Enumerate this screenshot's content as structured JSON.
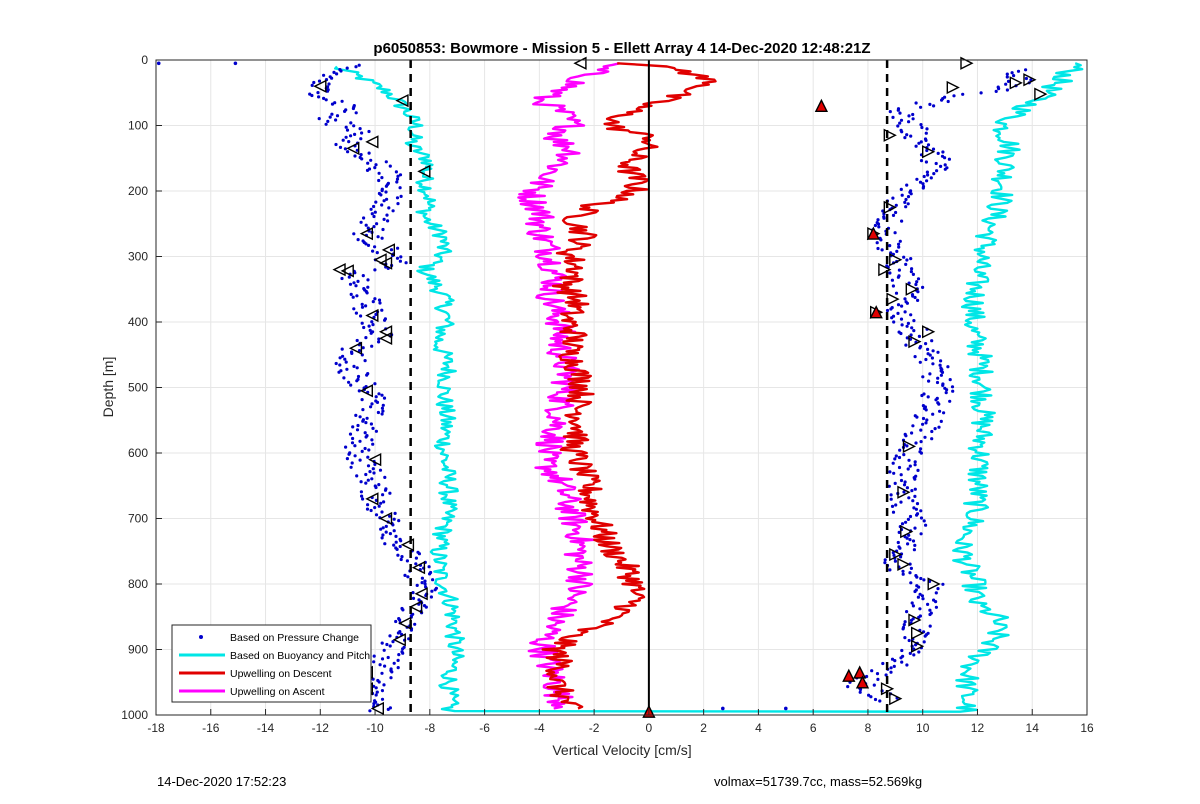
{
  "footer": {
    "timestamp": "14-Dec-2020 17:52:23",
    "info": "volmax=51739.7cc, mass=52.569kg"
  },
  "chart_data": {
    "type": "scatter",
    "title": "p6050853: Bowmore - Mission 5 - Ellett Array 4 14-Dec-2020 12:48:21Z",
    "xlabel": "Vertical Velocity [cm/s]",
    "ylabel": "Depth [m]",
    "xlim": [
      -18,
      16
    ],
    "ylim": [
      0,
      1000
    ],
    "y_reversed": true,
    "grid": true,
    "xticks": [
      -18,
      -16,
      -14,
      -12,
      -10,
      -8,
      -6,
      -4,
      -2,
      0,
      2,
      4,
      6,
      8,
      10,
      12,
      14,
      16
    ],
    "yticks": [
      0,
      100,
      200,
      300,
      400,
      500,
      600,
      700,
      800,
      900,
      1000
    ],
    "legend_position": "bottom-left",
    "colors": {
      "pressure": "#0000cc",
      "buoyancy": "#00e6e6",
      "descent": "#e00000",
      "ascent": "#ff00ff",
      "reference": "#000000",
      "marker_edge": "#000000"
    },
    "series": [
      {
        "name": "Based on Pressure Change",
        "style": "dots",
        "points_left": [
          [
            -10.8,
            8
          ],
          [
            -11.5,
            20
          ],
          [
            -12.2,
            40
          ],
          [
            -11.6,
            60
          ],
          [
            -10.7,
            75
          ],
          [
            -11.9,
            90
          ],
          [
            -10.3,
            110
          ],
          [
            -11.3,
            130
          ],
          [
            -10.1,
            150
          ],
          [
            -9.6,
            175
          ],
          [
            -9.3,
            200
          ],
          [
            -9.9,
            240
          ],
          [
            -10.3,
            270
          ],
          [
            -9.6,
            290
          ],
          [
            -9.4,
            310
          ],
          [
            -10.9,
            330
          ],
          [
            -10.4,
            360
          ],
          [
            -10.1,
            400
          ],
          [
            -9.7,
            420
          ],
          [
            -10.8,
            440
          ],
          [
            -10.9,
            470
          ],
          [
            -10.1,
            510
          ],
          [
            -10.3,
            550
          ],
          [
            -10.6,
            580
          ],
          [
            -10.5,
            610
          ],
          [
            -10.1,
            640
          ],
          [
            -9.9,
            680
          ],
          [
            -9.4,
            710
          ],
          [
            -9.1,
            740
          ],
          [
            -8.6,
            770
          ],
          [
            -8.2,
            800
          ],
          [
            -8.4,
            830
          ],
          [
            -8.9,
            860
          ],
          [
            -9.3,
            890
          ],
          [
            -9.6,
            920
          ],
          [
            -9.9,
            950
          ],
          [
            -10.0,
            980
          ],
          [
            -9.7,
            995
          ]
        ],
        "points_right": [
          [
            13.6,
            15
          ],
          [
            13.3,
            40
          ],
          [
            10.7,
            60
          ],
          [
            9.2,
            80
          ],
          [
            9.7,
            110
          ],
          [
            10.3,
            140
          ],
          [
            10.6,
            160
          ],
          [
            10.0,
            180
          ],
          [
            9.5,
            200
          ],
          [
            9.0,
            230
          ],
          [
            8.6,
            260
          ],
          [
            8.9,
            290
          ],
          [
            9.2,
            320
          ],
          [
            9.5,
            350
          ],
          [
            9.1,
            380
          ],
          [
            9.6,
            410
          ],
          [
            10.0,
            440
          ],
          [
            10.4,
            470
          ],
          [
            10.6,
            500
          ],
          [
            10.4,
            530
          ],
          [
            10.1,
            560
          ],
          [
            9.6,
            590
          ],
          [
            9.3,
            620
          ],
          [
            9.2,
            650
          ],
          [
            9.4,
            680
          ],
          [
            9.6,
            710
          ],
          [
            9.3,
            740
          ],
          [
            9.1,
            770
          ],
          [
            9.5,
            790
          ],
          [
            10.2,
            800
          ],
          [
            10.3,
            820
          ],
          [
            9.7,
            850
          ],
          [
            9.8,
            880
          ],
          [
            9.4,
            900
          ],
          [
            9.1,
            920
          ],
          [
            8.3,
            940
          ],
          [
            7.5,
            950
          ],
          [
            8.2,
            965
          ],
          [
            8.9,
            980
          ]
        ],
        "outliers": [
          [
            -17.9,
            5
          ],
          [
            -15.1,
            5
          ],
          [
            6.3,
            70
          ],
          [
            2.7,
            990
          ],
          [
            5.0,
            990
          ]
        ]
      },
      {
        "name": "Based on Buoyancy and Pitch",
        "style": "line",
        "points": [
          [
            -11.5,
            10
          ],
          [
            -10.6,
            25
          ],
          [
            -9.5,
            50
          ],
          [
            -8.9,
            75
          ],
          [
            -8.5,
            100
          ],
          [
            -8.7,
            130
          ],
          [
            -8.0,
            155
          ],
          [
            -8.2,
            180
          ],
          [
            -8.0,
            210
          ],
          [
            -8.2,
            240
          ],
          [
            -7.5,
            270
          ],
          [
            -7.6,
            300
          ],
          [
            -8.2,
            320
          ],
          [
            -7.5,
            360
          ],
          [
            -7.4,
            400
          ],
          [
            -7.7,
            430
          ],
          [
            -7.3,
            470
          ],
          [
            -7.5,
            510
          ],
          [
            -7.4,
            550
          ],
          [
            -7.5,
            600
          ],
          [
            -7.3,
            650
          ],
          [
            -7.4,
            700
          ],
          [
            -7.7,
            750
          ],
          [
            -7.6,
            790
          ],
          [
            -7.2,
            830
          ],
          [
            -7.1,
            870
          ],
          [
            -7.1,
            910
          ],
          [
            -7.3,
            950
          ],
          [
            -7.3,
            995
          ],
          [
            11.6,
            995
          ],
          [
            11.6,
            975
          ],
          [
            11.6,
            955
          ],
          [
            11.7,
            930
          ],
          [
            12.2,
            905
          ],
          [
            12.7,
            880
          ],
          [
            12.7,
            850
          ],
          [
            11.9,
            830
          ],
          [
            11.9,
            800
          ],
          [
            11.6,
            770
          ],
          [
            11.4,
            740
          ],
          [
            11.9,
            700
          ],
          [
            12.0,
            650
          ],
          [
            12.1,
            600
          ],
          [
            12.2,
            550
          ],
          [
            12.2,
            500
          ],
          [
            12.1,
            450
          ],
          [
            11.8,
            410
          ],
          [
            11.9,
            370
          ],
          [
            12.0,
            320
          ],
          [
            12.3,
            280
          ],
          [
            12.5,
            250
          ],
          [
            12.9,
            210
          ],
          [
            13.0,
            170
          ],
          [
            13.2,
            130
          ],
          [
            12.9,
            100
          ],
          [
            13.5,
            80
          ],
          [
            14.2,
            60
          ],
          [
            14.8,
            40
          ],
          [
            15.3,
            20
          ],
          [
            15.7,
            5
          ]
        ]
      },
      {
        "name": "Upwelling on Descent",
        "style": "line",
        "points": [
          [
            -0.8,
            5
          ],
          [
            1.2,
            15
          ],
          [
            2.4,
            35
          ],
          [
            0.5,
            60
          ],
          [
            -0.8,
            80
          ],
          [
            -1.5,
            100
          ],
          [
            0.2,
            120
          ],
          [
            -0.5,
            145
          ],
          [
            -0.8,
            165
          ],
          [
            -0.4,
            185
          ],
          [
            -0.6,
            205
          ],
          [
            -2.2,
            225
          ],
          [
            -2.7,
            245
          ],
          [
            -2.3,
            270
          ],
          [
            -2.9,
            295
          ],
          [
            -2.6,
            320
          ],
          [
            -3.0,
            345
          ],
          [
            -2.6,
            370
          ],
          [
            -3.0,
            395
          ],
          [
            -2.7,
            420
          ],
          [
            -2.9,
            445
          ],
          [
            -2.6,
            470
          ],
          [
            -2.4,
            500
          ],
          [
            -2.6,
            530
          ],
          [
            -2.5,
            560
          ],
          [
            -2.8,
            590
          ],
          [
            -2.5,
            620
          ],
          [
            -2.2,
            650
          ],
          [
            -2.1,
            680
          ],
          [
            -1.8,
            710
          ],
          [
            -1.5,
            740
          ],
          [
            -0.9,
            770
          ],
          [
            -0.5,
            800
          ],
          [
            -0.6,
            830
          ],
          [
            -1.4,
            855
          ],
          [
            -2.7,
            875
          ],
          [
            -3.4,
            900
          ],
          [
            -3.2,
            925
          ],
          [
            -3.4,
            950
          ],
          [
            -3.1,
            975
          ],
          [
            -2.9,
            990
          ]
        ]
      },
      {
        "name": "Upwelling on Ascent",
        "style": "line",
        "points": [
          [
            -1.5,
            5
          ],
          [
            -2.1,
            20
          ],
          [
            -2.9,
            40
          ],
          [
            -4.0,
            60
          ],
          [
            -3.2,
            80
          ],
          [
            -2.8,
            100
          ],
          [
            -3.4,
            120
          ],
          [
            -2.7,
            140
          ],
          [
            -3.4,
            165
          ],
          [
            -3.9,
            185
          ],
          [
            -4.3,
            210
          ],
          [
            -3.9,
            235
          ],
          [
            -4.0,
            260
          ],
          [
            -3.7,
            285
          ],
          [
            -3.5,
            310
          ],
          [
            -3.4,
            335
          ],
          [
            -3.6,
            360
          ],
          [
            -3.4,
            385
          ],
          [
            -3.2,
            410
          ],
          [
            -3.3,
            435
          ],
          [
            -3.1,
            460
          ],
          [
            -3.0,
            490
          ],
          [
            -3.2,
            520
          ],
          [
            -3.3,
            550
          ],
          [
            -3.5,
            580
          ],
          [
            -3.9,
            610
          ],
          [
            -3.3,
            640
          ],
          [
            -3.0,
            670
          ],
          [
            -2.8,
            700
          ],
          [
            -2.5,
            730
          ],
          [
            -2.6,
            760
          ],
          [
            -2.4,
            790
          ],
          [
            -2.8,
            820
          ],
          [
            -3.3,
            850
          ],
          [
            -3.6,
            870
          ],
          [
            -3.9,
            890
          ],
          [
            -3.8,
            910
          ],
          [
            -3.5,
            940
          ],
          [
            -3.3,
            970
          ],
          [
            -3.0,
            990
          ]
        ]
      }
    ],
    "markers": {
      "left_triangles": [
        [
          -12.0,
          40
        ],
        [
          -9.0,
          62
        ],
        [
          -10.1,
          125
        ],
        [
          -10.8,
          135
        ],
        [
          -8.2,
          170
        ],
        [
          -10.3,
          265
        ],
        [
          -9.5,
          290
        ],
        [
          -9.8,
          305
        ],
        [
          -9.6,
          310
        ],
        [
          -11.3,
          320
        ],
        [
          -11.0,
          322
        ],
        [
          -10.1,
          390
        ],
        [
          -9.6,
          415
        ],
        [
          -9.6,
          425
        ],
        [
          -10.7,
          440
        ],
        [
          -10.3,
          505
        ],
        [
          -10.0,
          610
        ],
        [
          -10.1,
          670
        ],
        [
          -9.6,
          700
        ],
        [
          -8.8,
          740
        ],
        [
          -8.4,
          775
        ],
        [
          -8.3,
          815
        ],
        [
          -8.5,
          835
        ],
        [
          -8.9,
          860
        ],
        [
          -9.1,
          885
        ],
        [
          -10.3,
          935
        ],
        [
          -10.3,
          960
        ],
        [
          -9.9,
          990
        ],
        [
          -2.5,
          5
        ]
      ],
      "right_triangles": [
        [
          11.6,
          5
        ],
        [
          13.9,
          30
        ],
        [
          13.4,
          35
        ],
        [
          11.1,
          42
        ],
        [
          14.3,
          52
        ],
        [
          8.8,
          115
        ],
        [
          10.2,
          140
        ],
        [
          8.8,
          225
        ],
        [
          8.2,
          265
        ],
        [
          9.0,
          305
        ],
        [
          8.6,
          320
        ],
        [
          9.6,
          350
        ],
        [
          8.9,
          365
        ],
        [
          8.3,
          385
        ],
        [
          10.2,
          415
        ],
        [
          9.7,
          430
        ],
        [
          9.5,
          590
        ],
        [
          9.3,
          660
        ],
        [
          9.4,
          720
        ],
        [
          9.0,
          755
        ],
        [
          9.3,
          770
        ],
        [
          10.4,
          800
        ],
        [
          9.7,
          855
        ],
        [
          9.8,
          875
        ],
        [
          9.8,
          895
        ],
        [
          8.7,
          960
        ],
        [
          9.0,
          975
        ]
      ],
      "red_triangles": [
        [
          6.3,
          70
        ],
        [
          8.2,
          265
        ],
        [
          8.3,
          385
        ],
        [
          7.3,
          940
        ],
        [
          7.7,
          935
        ],
        [
          7.8,
          950
        ],
        [
          0,
          995
        ]
      ]
    },
    "reference_lines": {
      "zero_line_x": 0,
      "dashed_x": [
        -8.7,
        8.7
      ]
    },
    "legend": [
      {
        "label": "Based on Pressure Change",
        "style": "dot"
      },
      {
        "label": "Based on Buoyancy and Pitch",
        "style": "line"
      },
      {
        "label": "Upwelling on Descent",
        "style": "line"
      },
      {
        "label": "Upwelling on Ascent",
        "style": "line"
      }
    ]
  }
}
